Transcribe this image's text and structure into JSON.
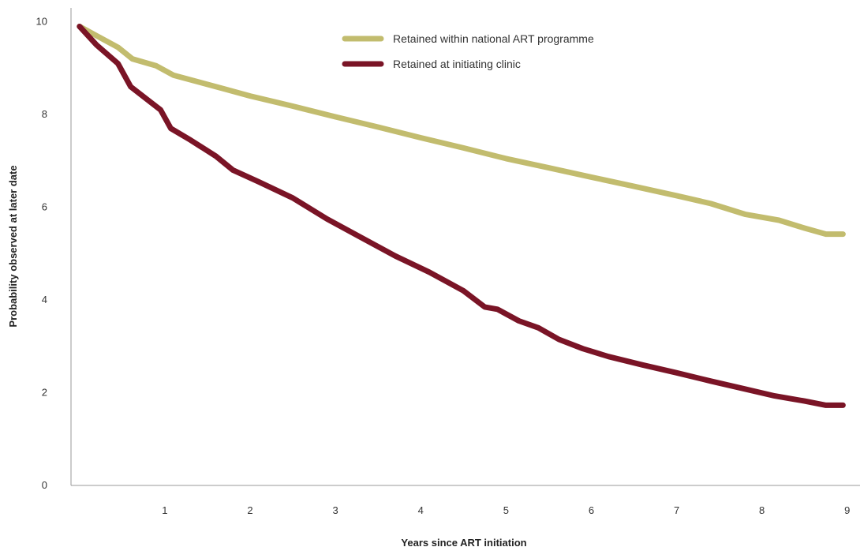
{
  "chart_data": {
    "type": "line",
    "title": "",
    "xlabel": "Years since ART initiation",
    "ylabel": "Probability observed at later date",
    "xlim": [
      -0.1,
      9.15
    ],
    "ylim": [
      0,
      10.3
    ],
    "x_ticks": [
      1,
      2,
      3,
      4,
      5,
      6,
      7,
      8,
      9
    ],
    "y_ticks": [
      0,
      2,
      4,
      6,
      8,
      10
    ],
    "grid": false,
    "legend_position": "top",
    "series": [
      {
        "name": "Retained within national ART programme",
        "color": "#c2bc6e",
        "x": [
          0.0,
          0.25,
          0.45,
          0.62,
          0.9,
          1.1,
          1.4,
          1.7,
          2.0,
          2.5,
          3.0,
          3.5,
          4.0,
          4.5,
          5.0,
          5.5,
          6.0,
          6.5,
          7.0,
          7.4,
          7.8,
          8.2,
          8.5,
          8.75,
          8.95
        ],
        "values": [
          9.9,
          9.65,
          9.45,
          9.2,
          9.05,
          8.85,
          8.7,
          8.55,
          8.4,
          8.18,
          7.95,
          7.73,
          7.5,
          7.28,
          7.05,
          6.85,
          6.65,
          6.45,
          6.25,
          6.08,
          5.85,
          5.72,
          5.55,
          5.42,
          5.42
        ]
      },
      {
        "name": "Retained at initiating clinic",
        "color": "#7a1426",
        "x": [
          0.0,
          0.2,
          0.45,
          0.6,
          0.95,
          1.07,
          1.3,
          1.6,
          1.8,
          2.1,
          2.5,
          2.9,
          3.3,
          3.7,
          4.1,
          4.5,
          4.75,
          4.9,
          5.15,
          5.38,
          5.62,
          5.9,
          6.2,
          6.6,
          7.0,
          7.4,
          7.8,
          8.15,
          8.5,
          8.75,
          8.95
        ],
        "values": [
          9.9,
          9.5,
          9.1,
          8.6,
          8.1,
          7.7,
          7.45,
          7.1,
          6.8,
          6.55,
          6.2,
          5.75,
          5.35,
          4.95,
          4.6,
          4.2,
          3.85,
          3.8,
          3.55,
          3.4,
          3.15,
          2.95,
          2.78,
          2.6,
          2.43,
          2.25,
          2.08,
          1.93,
          1.82,
          1.73,
          1.73
        ]
      }
    ]
  }
}
